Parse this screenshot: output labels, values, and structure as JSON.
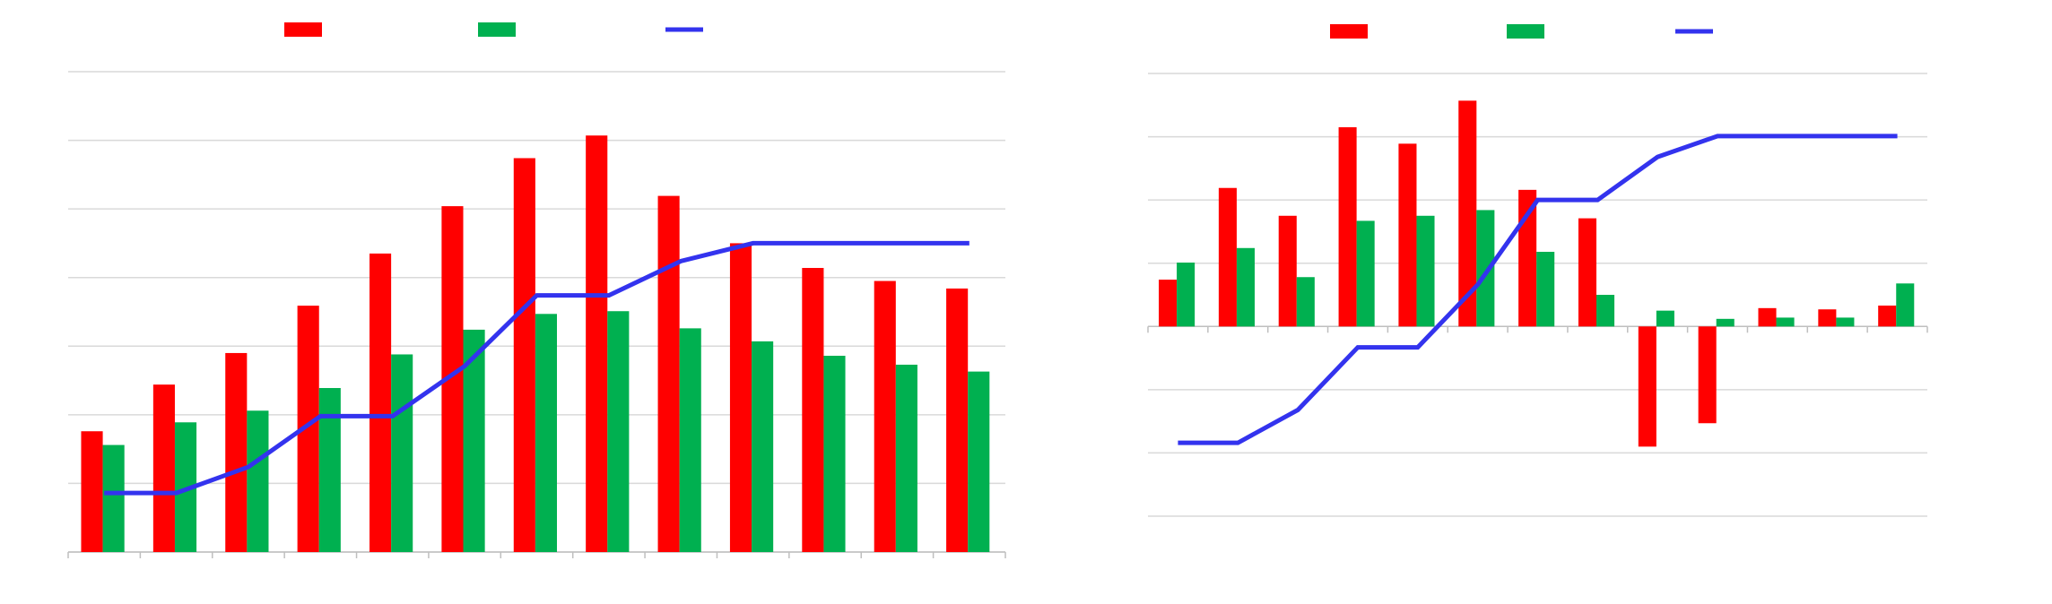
{
  "chart_data": [
    {
      "type": "bar",
      "categories": [
        null,
        null,
        null,
        null,
        null,
        null,
        null,
        null,
        null,
        null,
        null,
        null,
        null
      ],
      "series": [
        {
          "color": "#ff0000",
          "values": [
            17.6,
            24.4,
            29,
            35.9,
            43.5,
            50.4,
            57.4,
            60.7,
            51.9,
            45,
            41.4,
            39.5,
            38.4
          ]
        },
        {
          "color": "#00b050",
          "values": [
            15.6,
            18.9,
            20.6,
            23.9,
            28.8,
            32.4,
            34.7,
            35.1,
            32.6,
            30.7,
            28.6,
            27.3,
            26.3
          ]
        },
        {
          "type": "line",
          "color": "#3333ee",
          "values": [
            8.6,
            8.6,
            12.4,
            19.8,
            19.8,
            27.1,
            37.4,
            37.4,
            42.4,
            45,
            45,
            45,
            45
          ]
        }
      ],
      "ylim": [
        0,
        70
      ],
      "yticks": [
        0,
        10,
        20,
        30,
        40,
        50,
        60,
        70
      ],
      "grid": true,
      "legend": "top"
    },
    {
      "type": "bar",
      "categories": [
        null,
        null,
        null,
        null,
        null,
        null,
        null,
        null,
        null,
        null,
        null,
        null,
        null
      ],
      "series": [
        {
          "color": "#ff0000",
          "values": [
            7.4,
            21.9,
            17.5,
            31.5,
            28.9,
            35.7,
            21.6,
            17.1,
            -19,
            -15.3,
            2.9,
            2.7,
            3.3
          ]
        },
        {
          "color": "#00b050",
          "values": [
            10.1,
            12.4,
            7.8,
            16.7,
            17.5,
            18.4,
            11.8,
            5,
            2.5,
            1.2,
            1.4,
            1.4,
            6.8
          ]
        },
        {
          "type": "line",
          "color": "#3333ee",
          "values": [
            -18.4,
            -18.4,
            -13.2,
            -3.3,
            -3.3,
            6.6,
            20,
            20,
            26.8,
            30.1,
            30.1,
            30.1,
            30.1
          ]
        }
      ],
      "ylim": [
        -30,
        40
      ],
      "yticks": [
        -30,
        -20,
        -10,
        0,
        10,
        20,
        30,
        40
      ],
      "grid": true,
      "legend": "top"
    }
  ]
}
